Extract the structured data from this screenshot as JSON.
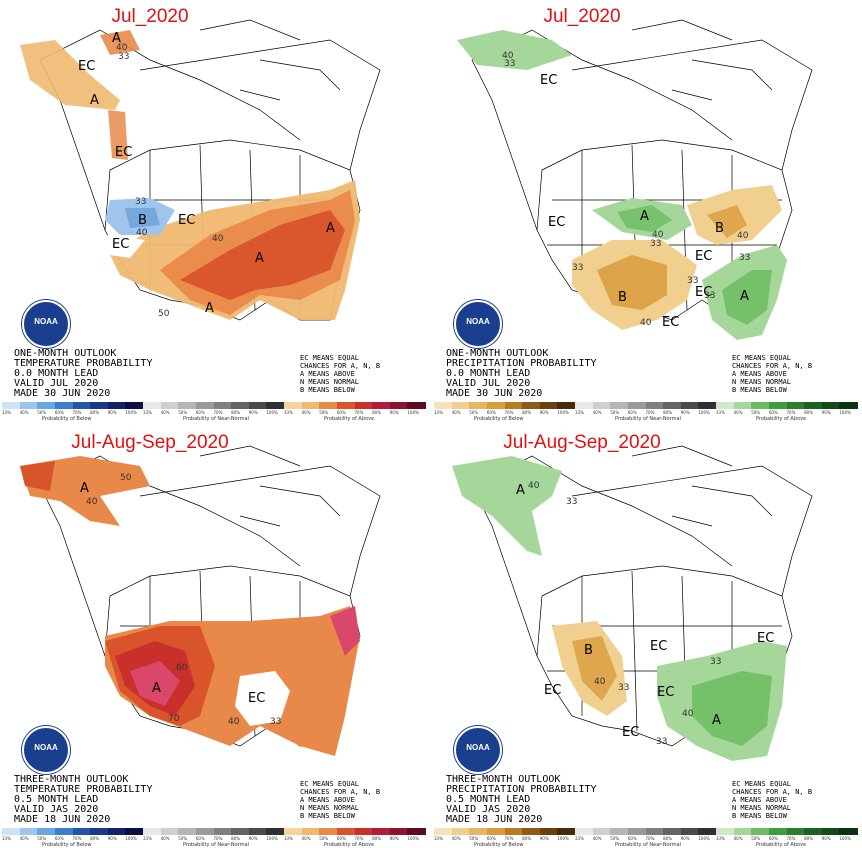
{
  "panels": [
    {
      "title": "Jul_2020",
      "info": [
        "ONE-MONTH OUTLOOK",
        "TEMPERATURE PROBABILITY",
        "0.0 MONTH LEAD",
        "VALID JUL 2020",
        "MADE 30 JUN 2020"
      ],
      "labels": {
        "a1": "A",
        "a2": "A",
        "a3": "A",
        "a4": "A",
        "b1": "B",
        "ec1": "EC",
        "ec2": "EC",
        "ec3": "EC",
        "c1": "40",
        "c2": "33",
        "c3": "40",
        "c4": "33",
        "c5": "50",
        "c6": "33",
        "c7": "40"
      },
      "colors": {
        "light": "#f0b870",
        "mid": "#e8894a",
        "dark": "#d9532b",
        "blue": "#9fc5ec",
        "blue2": "#5b93d4"
      }
    },
    {
      "title": "Jul_2020",
      "info": [
        "ONE-MONTH OUTLOOK",
        "PRECIPITATION PROBABILITY",
        "0.0 MONTH LEAD",
        "VALID JUL 2020",
        "MADE 30 JUN 2020"
      ],
      "labels": {
        "a1": "A",
        "a2": "A",
        "a3": "A",
        "b1": "B",
        "b2": "B",
        "ec1": "EC",
        "ec2": "EC",
        "ec3": "EC",
        "ec4": "EC",
        "ec5": "EC",
        "c1": "40",
        "c2": "33",
        "c3": "40",
        "c4": "33",
        "c5": "33",
        "c6": "40",
        "c7": "33",
        "c8": "33"
      },
      "colors": {
        "green": "#a6d79a",
        "green2": "#6cbd61",
        "tan": "#f1d08f",
        "tan2": "#d99b3c"
      }
    },
    {
      "title": "Jul-Aug-Sep_2020",
      "info": [
        "THREE-MONTH OUTLOOK",
        "TEMPERATURE PROBABILITY",
        "0.5 MONTH LEAD",
        "VALID JAS 2020",
        "MADE 18 JUN 2020"
      ],
      "labels": {
        "a1": "A",
        "a2": "A",
        "ec1": "EC",
        "c1": "50",
        "c2": "40",
        "c3": "60",
        "c4": "70",
        "c5": "40",
        "c6": "33",
        "c7": "40"
      },
      "colors": {
        "light": "#f0b870",
        "mid": "#e8894a",
        "dark": "#d9532b",
        "red": "#c9302c",
        "pink": "#d9486a"
      }
    },
    {
      "title": "Jul-Aug-Sep_2020",
      "info": [
        "THREE-MONTH OUTLOOK",
        "PRECIPITATION PROBABILITY",
        "0.5 MONTH LEAD",
        "VALID JAS 2020",
        "MADE 18 JUN 2020"
      ],
      "labels": {
        "a1": "A",
        "a2": "A",
        "b1": "B",
        "ec1": "EC",
        "ec2": "EC",
        "ec3": "EC",
        "ec4": "EC",
        "ec5": "EC",
        "c1": "40",
        "c2": "33",
        "c3": "40",
        "c4": "33",
        "c5": "33",
        "c6": "40",
        "c7": "33"
      },
      "colors": {
        "green": "#a6d79a",
        "green2": "#6cbd61",
        "tan": "#f1d08f",
        "tan2": "#d99b3c"
      }
    }
  ],
  "logo_text": "NOAA",
  "key_text": [
    "EC MEANS EQUAL",
    "CHANCES FOR A, N, B",
    "A MEANS ABOVE",
    "N MEANS NORMAL",
    "B MEANS BELOW"
  ],
  "legend": {
    "ticks": [
      "33%",
      "40%",
      "50%",
      "60%",
      "70%",
      "80%",
      "90%",
      "100%"
    ],
    "temp_captions": [
      "Probability of Below",
      "Probability of Near-Normal",
      "Probability of Above"
    ],
    "precip_captions": [
      "Probability of Below",
      "Probability of Near-Normal",
      "Probability of Above"
    ],
    "temp_colors": {
      "below": [
        "#cfe3f7",
        "#9fc5ec",
        "#6aa6e0",
        "#3a7fcc",
        "#2554a8",
        "#1b3a85",
        "#151f6a",
        "#0b0f45"
      ],
      "normal": [
        "#e8e8e8",
        "#cfcfcf",
        "#b5b5b5",
        "#9a9a9a",
        "#7f7f7f",
        "#646464",
        "#4a4a4a",
        "#303030"
      ],
      "above": [
        "#f7d39e",
        "#f0b870",
        "#e8894a",
        "#d9532b",
        "#c9302c",
        "#b21c3a",
        "#8d1230",
        "#5e0a1f"
      ]
    },
    "precip_colors": {
      "below": [
        "#f7e3b9",
        "#f1d08f",
        "#e6b566",
        "#d99b3c",
        "#b97b22",
        "#8f5a16",
        "#6a400f",
        "#472a08"
      ],
      "normal": [
        "#e8e8e8",
        "#cfcfcf",
        "#b5b5b5",
        "#9a9a9a",
        "#7f7f7f",
        "#646464",
        "#4a4a4a",
        "#303030"
      ],
      "above": [
        "#cfe9c6",
        "#a6d79a",
        "#6cbd61",
        "#3f9e3c",
        "#2b7f2c",
        "#1e6223",
        "#144a19",
        "#0b3210"
      ]
    }
  }
}
